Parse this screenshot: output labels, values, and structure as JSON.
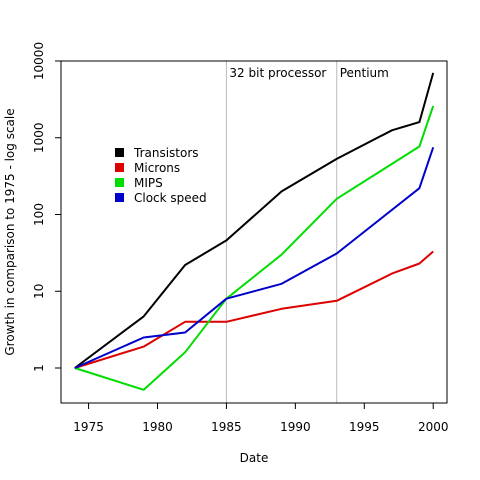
{
  "chart_data": {
    "type": "line",
    "xlabel": "Date",
    "ylabel": "Growth in comparison to 1975 - log scale",
    "xlim": [
      1973,
      2001
    ],
    "ylim": [
      0.35,
      10000
    ],
    "log_y": true,
    "grid": false,
    "legend_position": "center-left",
    "x_ticks": [
      1975,
      1980,
      1985,
      1990,
      1995,
      2000
    ],
    "y_ticks": [
      {
        "value": 1,
        "label": "1"
      },
      {
        "value": 10,
        "label": "10"
      },
      {
        "value": 100,
        "label": "100"
      },
      {
        "value": 1000,
        "label": "1000"
      },
      {
        "value": 10000,
        "label": "10000"
      }
    ],
    "series": [
      {
        "name": "Transistors",
        "color": "#000000",
        "x": [
          1974,
          1979,
          1982,
          1985,
          1989,
          1993,
          1997,
          1999,
          2000
        ],
        "y": [
          1,
          4.7,
          22,
          46,
          200,
          530,
          1250,
          1600,
          7000
        ]
      },
      {
        "name": "Microns",
        "color": "#dd0000",
        "x": [
          1974,
          1979,
          1982,
          1985,
          1989,
          1993,
          1997,
          1999,
          2000
        ],
        "y": [
          1,
          1.9,
          4,
          4,
          5.9,
          7.5,
          17,
          23,
          33
        ]
      },
      {
        "name": "MIPS",
        "color": "#00dd00",
        "x": [
          1974,
          1979,
          1982,
          1985,
          1989,
          1993,
          1999,
          2000
        ],
        "y": [
          1,
          0.52,
          1.6,
          8,
          30,
          160,
          770,
          2600
        ]
      },
      {
        "name": "Clock speed",
        "color": "#0000cc",
        "x": [
          1974,
          1979,
          1982,
          1985,
          1989,
          1993,
          1999,
          2000
        ],
        "y": [
          1,
          2.5,
          2.9,
          8,
          12.5,
          31,
          220,
          750
        ]
      }
    ],
    "vlines": [
      {
        "x": 1985,
        "label": "32 bit processor"
      },
      {
        "x": 1993,
        "label": "Pentium"
      }
    ],
    "axis_color": "#000000",
    "vline_color": "#bbbbbb"
  }
}
